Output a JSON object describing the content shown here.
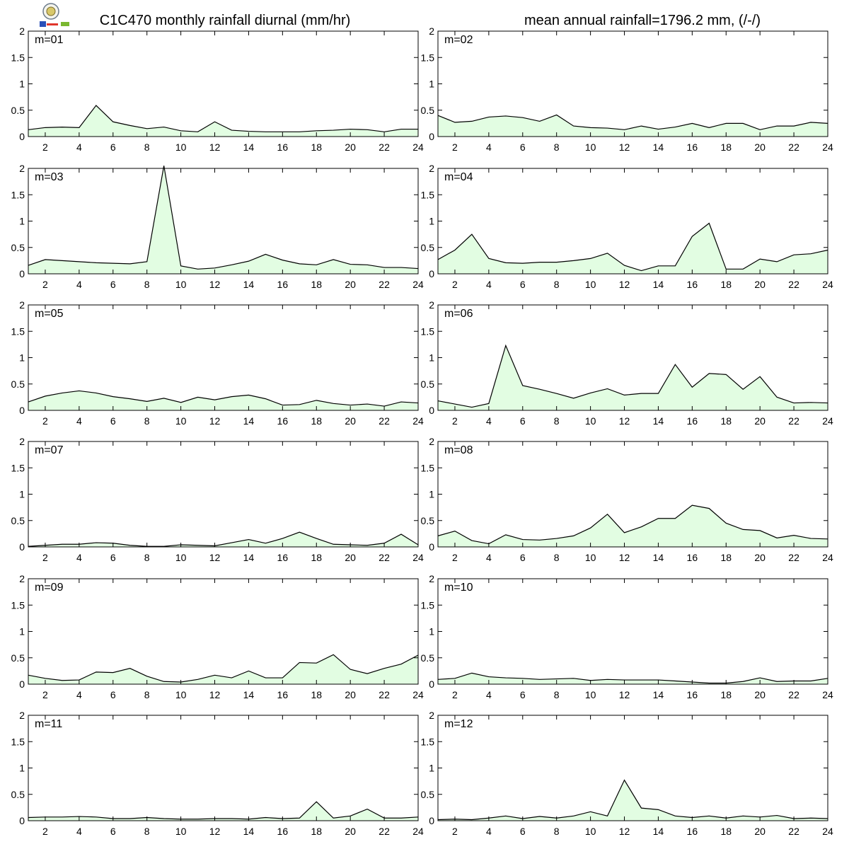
{
  "header": {
    "left_title": "C1C470 monthly rainfall diurnal (mm/hr)",
    "right_title": "mean annual rainfall=1796.2 mm, (/-/)"
  },
  "colors": {
    "fill": "#e2fde2",
    "line": "#000000",
    "frame": "#000000"
  },
  "chart_data": {
    "type": "area",
    "x": [
      1,
      2,
      3,
      4,
      5,
      6,
      7,
      8,
      9,
      10,
      11,
      12,
      13,
      14,
      15,
      16,
      17,
      18,
      19,
      20,
      21,
      22,
      23,
      24
    ],
    "xlim": [
      1,
      24
    ],
    "ylim": [
      0,
      2
    ],
    "x_ticks": [
      2,
      4,
      6,
      8,
      10,
      12,
      14,
      16,
      18,
      20,
      22,
      24
    ],
    "y_ticks": [
      "0",
      "0.5",
      "1",
      "1.5",
      "2"
    ],
    "grid": false,
    "panels": [
      {
        "label": "m=01",
        "values": [
          0.13,
          0.17,
          0.18,
          0.17,
          0.59,
          0.28,
          0.21,
          0.15,
          0.18,
          0.11,
          0.09,
          0.28,
          0.12,
          0.1,
          0.09,
          0.09,
          0.09,
          0.11,
          0.12,
          0.14,
          0.13,
          0.09,
          0.14,
          0.14
        ]
      },
      {
        "label": "m=02",
        "values": [
          0.4,
          0.27,
          0.29,
          0.37,
          0.39,
          0.36,
          0.29,
          0.41,
          0.2,
          0.17,
          0.16,
          0.13,
          0.2,
          0.14,
          0.18,
          0.25,
          0.17,
          0.25,
          0.25,
          0.13,
          0.2,
          0.2,
          0.27,
          0.25
        ]
      },
      {
        "label": "m=03",
        "values": [
          0.16,
          0.27,
          0.25,
          0.23,
          0.21,
          0.2,
          0.19,
          0.23,
          2.05,
          0.15,
          0.09,
          0.11,
          0.17,
          0.24,
          0.37,
          0.26,
          0.19,
          0.17,
          0.27,
          0.18,
          0.17,
          0.12,
          0.12,
          0.1
        ]
      },
      {
        "label": "m=04",
        "values": [
          0.27,
          0.45,
          0.75,
          0.29,
          0.21,
          0.2,
          0.22,
          0.22,
          0.25,
          0.29,
          0.39,
          0.16,
          0.06,
          0.15,
          0.15,
          0.71,
          0.96,
          0.09,
          0.09,
          0.28,
          0.23,
          0.36,
          0.38,
          0.45
        ]
      },
      {
        "label": "m=05",
        "values": [
          0.16,
          0.27,
          0.33,
          0.37,
          0.33,
          0.26,
          0.22,
          0.17,
          0.23,
          0.15,
          0.25,
          0.2,
          0.26,
          0.29,
          0.22,
          0.1,
          0.11,
          0.19,
          0.13,
          0.1,
          0.12,
          0.08,
          0.16,
          0.14
        ]
      },
      {
        "label": "m=06",
        "values": [
          0.18,
          0.12,
          0.06,
          0.13,
          1.23,
          0.47,
          0.4,
          0.32,
          0.23,
          0.33,
          0.41,
          0.29,
          0.32,
          0.32,
          0.87,
          0.44,
          0.7,
          0.68,
          0.4,
          0.64,
          0.25,
          0.14,
          0.15,
          0.14
        ]
      },
      {
        "label": "m=07",
        "values": [
          0.01,
          0.03,
          0.05,
          0.05,
          0.08,
          0.07,
          0.03,
          0.01,
          0.01,
          0.04,
          0.03,
          0.02,
          0.08,
          0.14,
          0.07,
          0.16,
          0.28,
          0.16,
          0.05,
          0.04,
          0.03,
          0.07,
          0.24,
          0.04
        ]
      },
      {
        "label": "m=08",
        "values": [
          0.21,
          0.3,
          0.12,
          0.06,
          0.23,
          0.14,
          0.13,
          0.16,
          0.21,
          0.36,
          0.62,
          0.27,
          0.38,
          0.54,
          0.54,
          0.79,
          0.73,
          0.45,
          0.33,
          0.31,
          0.17,
          0.22,
          0.16,
          0.15
        ]
      },
      {
        "label": "m=09",
        "values": [
          0.17,
          0.11,
          0.07,
          0.08,
          0.23,
          0.22,
          0.3,
          0.15,
          0.05,
          0.04,
          0.09,
          0.17,
          0.12,
          0.25,
          0.12,
          0.12,
          0.41,
          0.4,
          0.56,
          0.28,
          0.2,
          0.3,
          0.38,
          0.55
        ]
      },
      {
        "label": "m=10",
        "values": [
          0.09,
          0.11,
          0.21,
          0.14,
          0.12,
          0.11,
          0.09,
          0.1,
          0.11,
          0.07,
          0.09,
          0.08,
          0.08,
          0.08,
          0.06,
          0.04,
          0.02,
          0.02,
          0.05,
          0.12,
          0.05,
          0.06,
          0.06,
          0.11
        ]
      },
      {
        "label": "m=11",
        "values": [
          0.06,
          0.07,
          0.07,
          0.08,
          0.07,
          0.04,
          0.04,
          0.06,
          0.04,
          0.03,
          0.03,
          0.04,
          0.04,
          0.03,
          0.06,
          0.04,
          0.05,
          0.36,
          0.05,
          0.09,
          0.22,
          0.05,
          0.05,
          0.07
        ]
      },
      {
        "label": "m=12",
        "values": [
          0.02,
          0.03,
          0.02,
          0.05,
          0.09,
          0.04,
          0.08,
          0.05,
          0.09,
          0.17,
          0.09,
          0.77,
          0.24,
          0.21,
          0.09,
          0.06,
          0.09,
          0.05,
          0.09,
          0.07,
          0.1,
          0.04,
          0.05,
          0.04
        ]
      }
    ]
  }
}
